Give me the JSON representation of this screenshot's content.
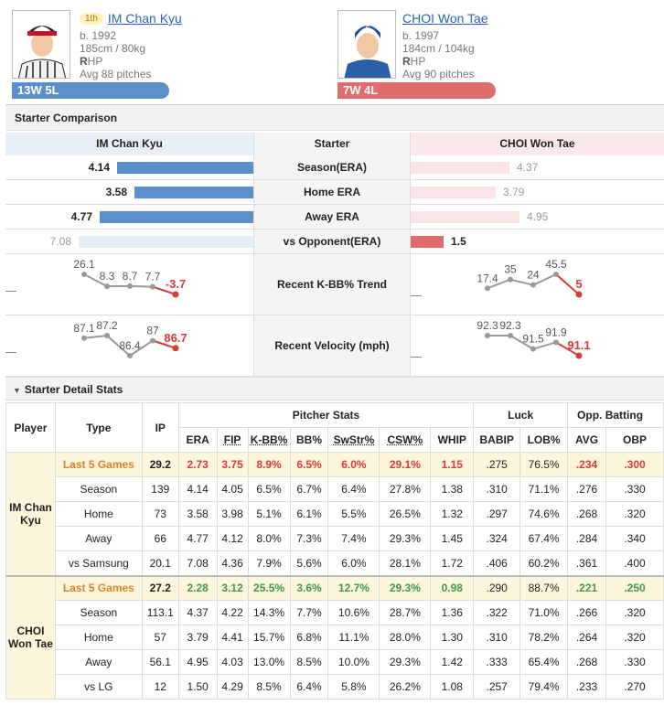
{
  "home": {
    "rank": "1th",
    "name": "IM Chan Kyu",
    "born": "b. 1992",
    "body": "185cm / 80kg",
    "throws_bold": "R",
    "throws_rest": "HP",
    "avg_pitches": "Avg 88 pitches",
    "record": "13W 5L",
    "color": "#5b8fc9"
  },
  "away": {
    "name": "CHOI Won Tae",
    "born": "b. 1997",
    "body": "184cm / 104kg",
    "throws_bold": "R",
    "throws_rest": "HP",
    "avg_pitches": "Avg 90 pitches",
    "record": "7W 4L",
    "color": "#e06b6b"
  },
  "comparison": {
    "title": "Starter Comparison",
    "left_header": "IM Chan Kyu",
    "mid_header": "Starter",
    "right_header": "CHOI Won Tae",
    "rows": [
      {
        "label": "Season(ERA)",
        "left": "4.14",
        "right": "4.37",
        "left_frac": 0.78,
        "right_frac": 0.8,
        "left_better": true
      },
      {
        "label": "Home ERA",
        "left": "3.58",
        "right": "3.79",
        "left_frac": 0.68,
        "right_frac": 0.69,
        "left_better": true
      },
      {
        "label": "Away ERA",
        "left": "4.77",
        "right": "4.95",
        "left_frac": 0.88,
        "right_frac": 0.88,
        "left_better": true
      },
      {
        "label": "vs Opponent(ERA)",
        "left": "7.08",
        "right": "1.5",
        "left_frac": 1.0,
        "right_frac": 0.27,
        "left_better": false
      }
    ],
    "trends": [
      {
        "label": "Recent K-BB% Trend",
        "left": [
          "26.1",
          "8.3",
          "8.7",
          "7.7",
          "-3.7"
        ],
        "right": [
          "17.4",
          "35",
          "24",
          "45.5",
          "5"
        ]
      },
      {
        "label": "Recent Velocity (mph)",
        "left": [
          "87.1",
          "87.2",
          "86.4",
          "87",
          "86.7"
        ],
        "right": [
          "92.3",
          "92.3",
          "91.5",
          "91.9",
          "91.1"
        ]
      }
    ]
  },
  "detail": {
    "title": "Starter Detail Stats",
    "toggle_icon": "caret-down-icon",
    "groups": {
      "pitcher": "Pitcher Stats",
      "luck": "Luck",
      "opp": "Opp. Batting"
    },
    "headers": {
      "player": "Player",
      "type": "Type",
      "ip": "IP",
      "cols": [
        "ERA",
        "FIP",
        "K-BB%",
        "BB%",
        "SwStr%",
        "CSW%",
        "WHIP",
        "BABIP",
        "LOB%",
        "AVG",
        "OBP"
      ]
    },
    "players": [
      {
        "name": "IM Chan Kyu",
        "rows": [
          {
            "type": "Last 5 Games",
            "ip": "29.2",
            "vals": [
              "2.73",
              "3.75",
              "8.9%",
              "6.5%",
              "6.0%",
              "29.1%",
              "1.15",
              ".275",
              "76.5%",
              ".234",
              ".300"
            ]
          },
          {
            "type": "Season",
            "ip": "139",
            "vals": [
              "4.14",
              "4.05",
              "6.5%",
              "6.7%",
              "6.4%",
              "27.8%",
              "1.38",
              ".310",
              "71.1%",
              ".276",
              ".330"
            ]
          },
          {
            "type": "Home",
            "ip": "73",
            "vals": [
              "3.58",
              "3.98",
              "5.1%",
              "6.1%",
              "5.5%",
              "26.5%",
              "1.32",
              ".297",
              "74.6%",
              ".268",
              ".320"
            ]
          },
          {
            "type": "Away",
            "ip": "66",
            "vals": [
              "4.77",
              "4.12",
              "8.0%",
              "7.3%",
              "7.4%",
              "29.3%",
              "1.45",
              ".324",
              "67.4%",
              ".284",
              ".340"
            ]
          },
          {
            "type": "vs Samsung",
            "ip": "20.1",
            "vals": [
              "7.08",
              "4.36",
              "7.9%",
              "5.6%",
              "6.0%",
              "28.1%",
              "1.72",
              ".406",
              "60.2%",
              ".361",
              ".400"
            ]
          }
        ]
      },
      {
        "name": "CHOI Won Tae",
        "rows": [
          {
            "type": "Last 5 Games",
            "ip": "27.2",
            "vals": [
              "2.28",
              "3.12",
              "25.5%",
              "3.6%",
              "12.7%",
              "29.3%",
              "0.98",
              ".290",
              "88.7%",
              ".221",
              ".250"
            ]
          },
          {
            "type": "Season",
            "ip": "113.1",
            "vals": [
              "4.37",
              "4.22",
              "14.3%",
              "7.7%",
              "10.6%",
              "28.7%",
              "1.36",
              ".322",
              "71.0%",
              ".266",
              ".320"
            ]
          },
          {
            "type": "Home",
            "ip": "57",
            "vals": [
              "3.79",
              "4.41",
              "15.7%",
              "6.8%",
              "11.1%",
              "28.0%",
              "1.30",
              ".310",
              "78.2%",
              ".264",
              ".320"
            ]
          },
          {
            "type": "Away",
            "ip": "56.1",
            "vals": [
              "4.95",
              "4.03",
              "13.0%",
              "8.5%",
              "10.0%",
              "29.3%",
              "1.42",
              ".333",
              "65.4%",
              ".268",
              ".330"
            ]
          },
          {
            "type": "vs LG",
            "ip": "12",
            "vals": [
              "1.50",
              "4.29",
              "8.5%",
              "6.4%",
              "5.8%",
              "26.2%",
              "1.08",
              ".257",
              "79.4%",
              ".233",
              ".270"
            ]
          }
        ]
      }
    ]
  }
}
